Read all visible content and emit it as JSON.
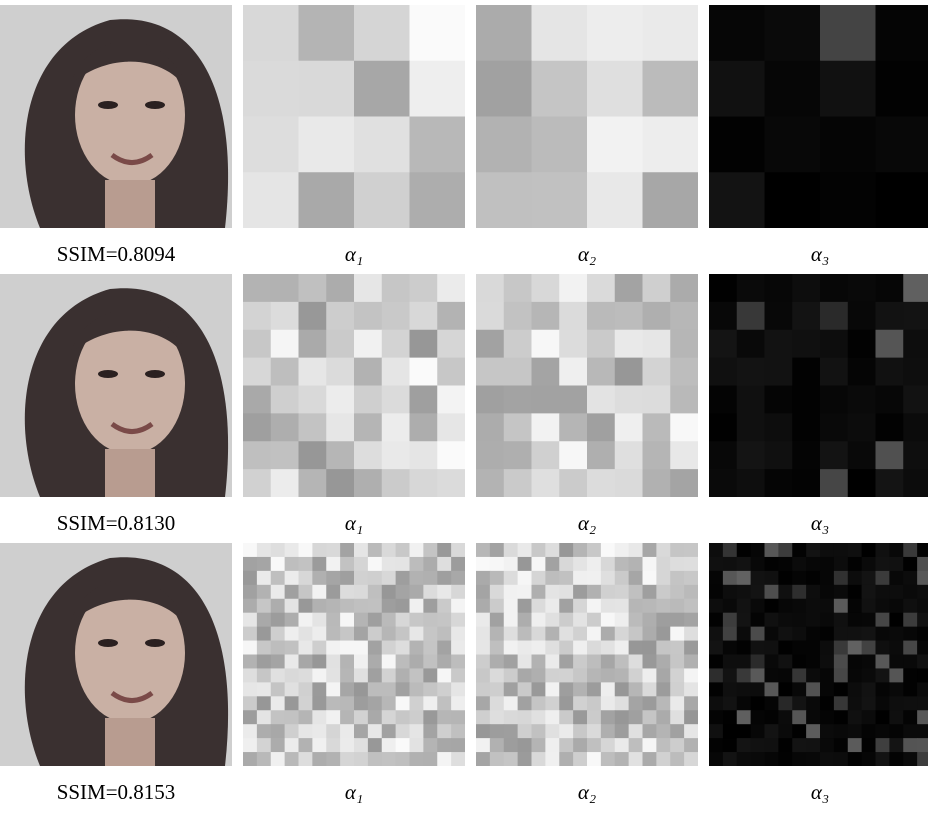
{
  "figure": {
    "rows": [
      {
        "caption": "SSIM=0.8094",
        "labels": [
          "α₁",
          "α₂",
          "α₃"
        ]
      },
      {
        "caption": "SSIM=0.8130",
        "labels": [
          "α₁",
          "α₂",
          "α₃"
        ]
      },
      {
        "caption": "SSIM=0.8153",
        "labels": [
          "α₁",
          "α₂",
          "α₃"
        ]
      }
    ]
  }
}
